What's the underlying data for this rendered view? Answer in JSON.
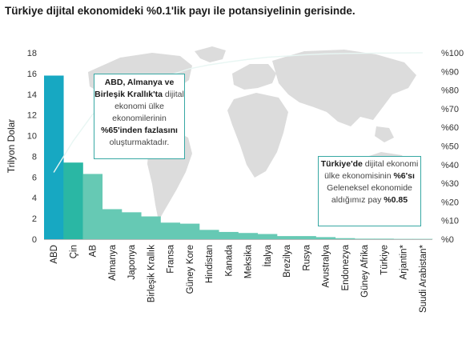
{
  "title": "Türkiye dijital ekonomideki %0.1'lik payı ile potansiyelinin gerisinde.",
  "annotations": {
    "left": {
      "bold1": "ABD, Almanya ve Birleşik Krallık'ta",
      "text1": " dijital ekonomi ülke ekonomilerinin ",
      "bold2": "%65'inden fazlasını",
      "text2": " oluşturmaktadır."
    },
    "right": {
      "bold1": "Türkiye'de",
      "text1": " dijital ekonomi ülke ekonomisinin ",
      "bold2": "%6'sı",
      "text2": " Geleneksel ekonomide aldığımız pay ",
      "bold3": "%0.85"
    }
  },
  "colors": {
    "bar_dark": "#17a8c2",
    "bar_mid": "#2ab7a4",
    "bar_light": "#66c9b4",
    "line": "#e8f6f3",
    "map": "#dcdcdc",
    "border": "#37a8a4"
  },
  "chart_data": {
    "type": "bar",
    "title": "Türkiye dijital ekonomideki %0.1'lik payı ile potansiyelinin gerisinde.",
    "ylabel": "Trilyon Dolar",
    "ylim": [
      0,
      18
    ],
    "yticks": [
      0,
      2,
      4,
      6,
      8,
      10,
      12,
      14,
      16,
      18
    ],
    "y2lim": [
      0,
      100
    ],
    "y2ticks": [
      "%0",
      "%10",
      "%20",
      "%30",
      "%40",
      "%50",
      "%60",
      "%70",
      "%80",
      "%90",
      "%100"
    ],
    "categories": [
      "ABD",
      "Çin",
      "AB",
      "Almanya",
      "Japonya",
      "Birleşik Krallık",
      "Fransa",
      "Güney Kore",
      "Hindistan",
      "Kanada",
      "Meksika",
      "İtalya",
      "Brezilya",
      "Rusya",
      "Avustralya",
      "Endonezya",
      "Güney Afrika",
      "Türkiye",
      "Arjantin*",
      "Suudi Arabistan*"
    ],
    "values": [
      15.8,
      7.4,
      6.3,
      2.9,
      2.6,
      2.2,
      1.6,
      1.5,
      0.9,
      0.7,
      0.6,
      0.5,
      0.3,
      0.3,
      0.2,
      0.1,
      0.05,
      0.05,
      0.03,
      0.03
    ],
    "cumulative_share_line": true
  }
}
